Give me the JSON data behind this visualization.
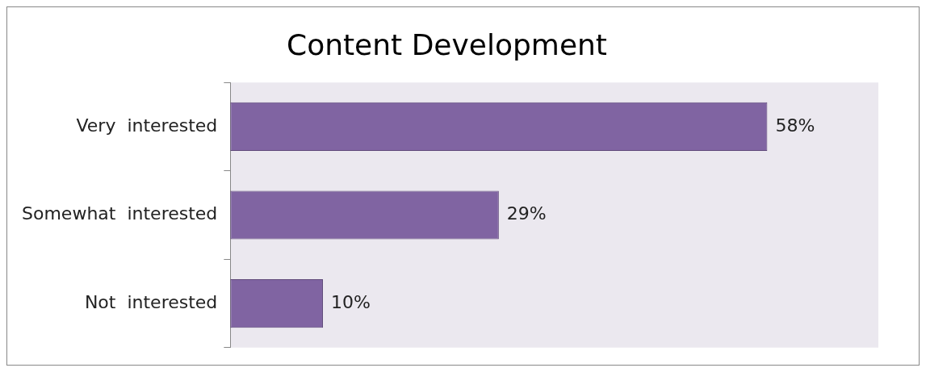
{
  "chart_data": {
    "type": "bar",
    "orientation": "horizontal",
    "title": "Content Development",
    "categories": [
      "Very  interested",
      "Somewhat  interested",
      "Not  interested"
    ],
    "values": [
      58,
      29,
      10
    ],
    "value_labels": [
      "58%",
      "29%",
      "10%"
    ],
    "color": "#8064a2",
    "legend": false
  }
}
